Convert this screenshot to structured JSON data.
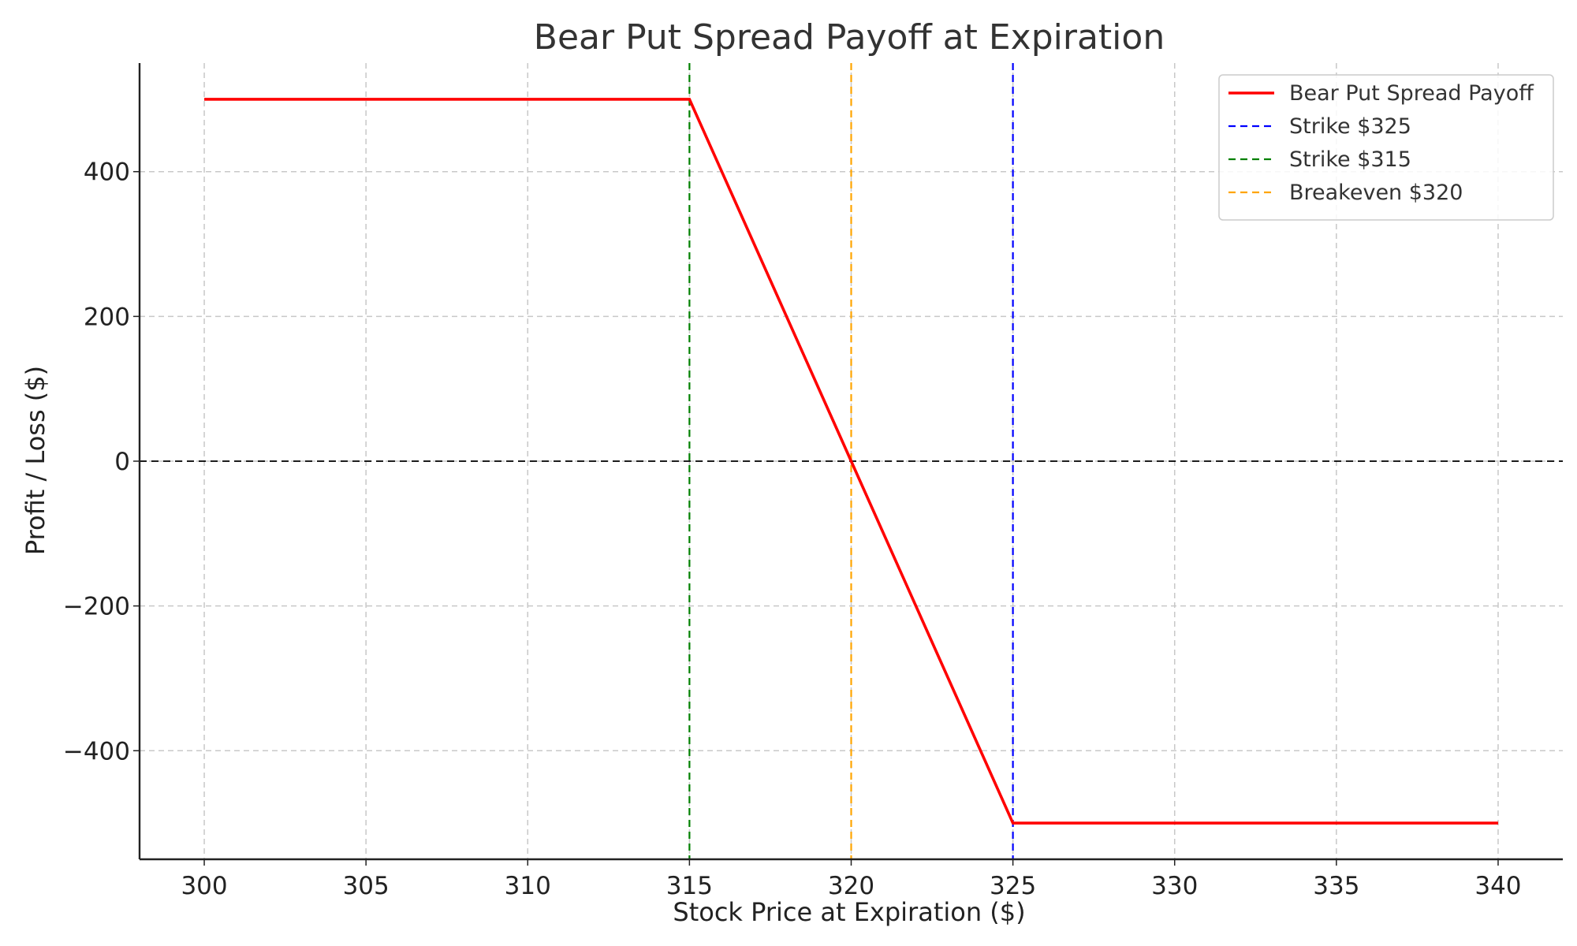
{
  "chart_data": {
    "type": "line",
    "title": "Bear Put Spread Payoff at Expiration",
    "xlabel": "Stock Price at Expiration ($)",
    "ylabel": "Profit / Loss ($)",
    "xlim": [
      298,
      342
    ],
    "ylim": [
      -550,
      550
    ],
    "xticks": [
      300,
      305,
      310,
      315,
      320,
      325,
      330,
      335,
      340
    ],
    "yticks": [
      -400,
      -200,
      0,
      200,
      400
    ],
    "xtick_labels": [
      "300",
      "305",
      "310",
      "315",
      "320",
      "325",
      "330",
      "335",
      "340"
    ],
    "ytick_labels": [
      "−400",
      "−200",
      "0",
      "200",
      "400"
    ],
    "grid": true,
    "legend_position": "top-right",
    "series": [
      {
        "name": "Bear Put Spread Payoff",
        "color": "#ff0000",
        "style": "solid",
        "x": [
          300,
          315,
          320,
          325,
          340
        ],
        "y": [
          500,
          500,
          0,
          -500,
          -500
        ]
      }
    ],
    "vlines": [
      {
        "name": "Strike $325",
        "x": 325,
        "color": "#0000ff",
        "style": "dashed"
      },
      {
        "name": "Strike $315",
        "x": 315,
        "color": "#008000",
        "style": "dashed"
      },
      {
        "name": "Breakeven $320",
        "x": 320,
        "color": "#ffa500",
        "style": "dashed"
      }
    ],
    "hlines": [
      {
        "y": 0,
        "color": "#000000",
        "style": "dashed"
      }
    ]
  }
}
